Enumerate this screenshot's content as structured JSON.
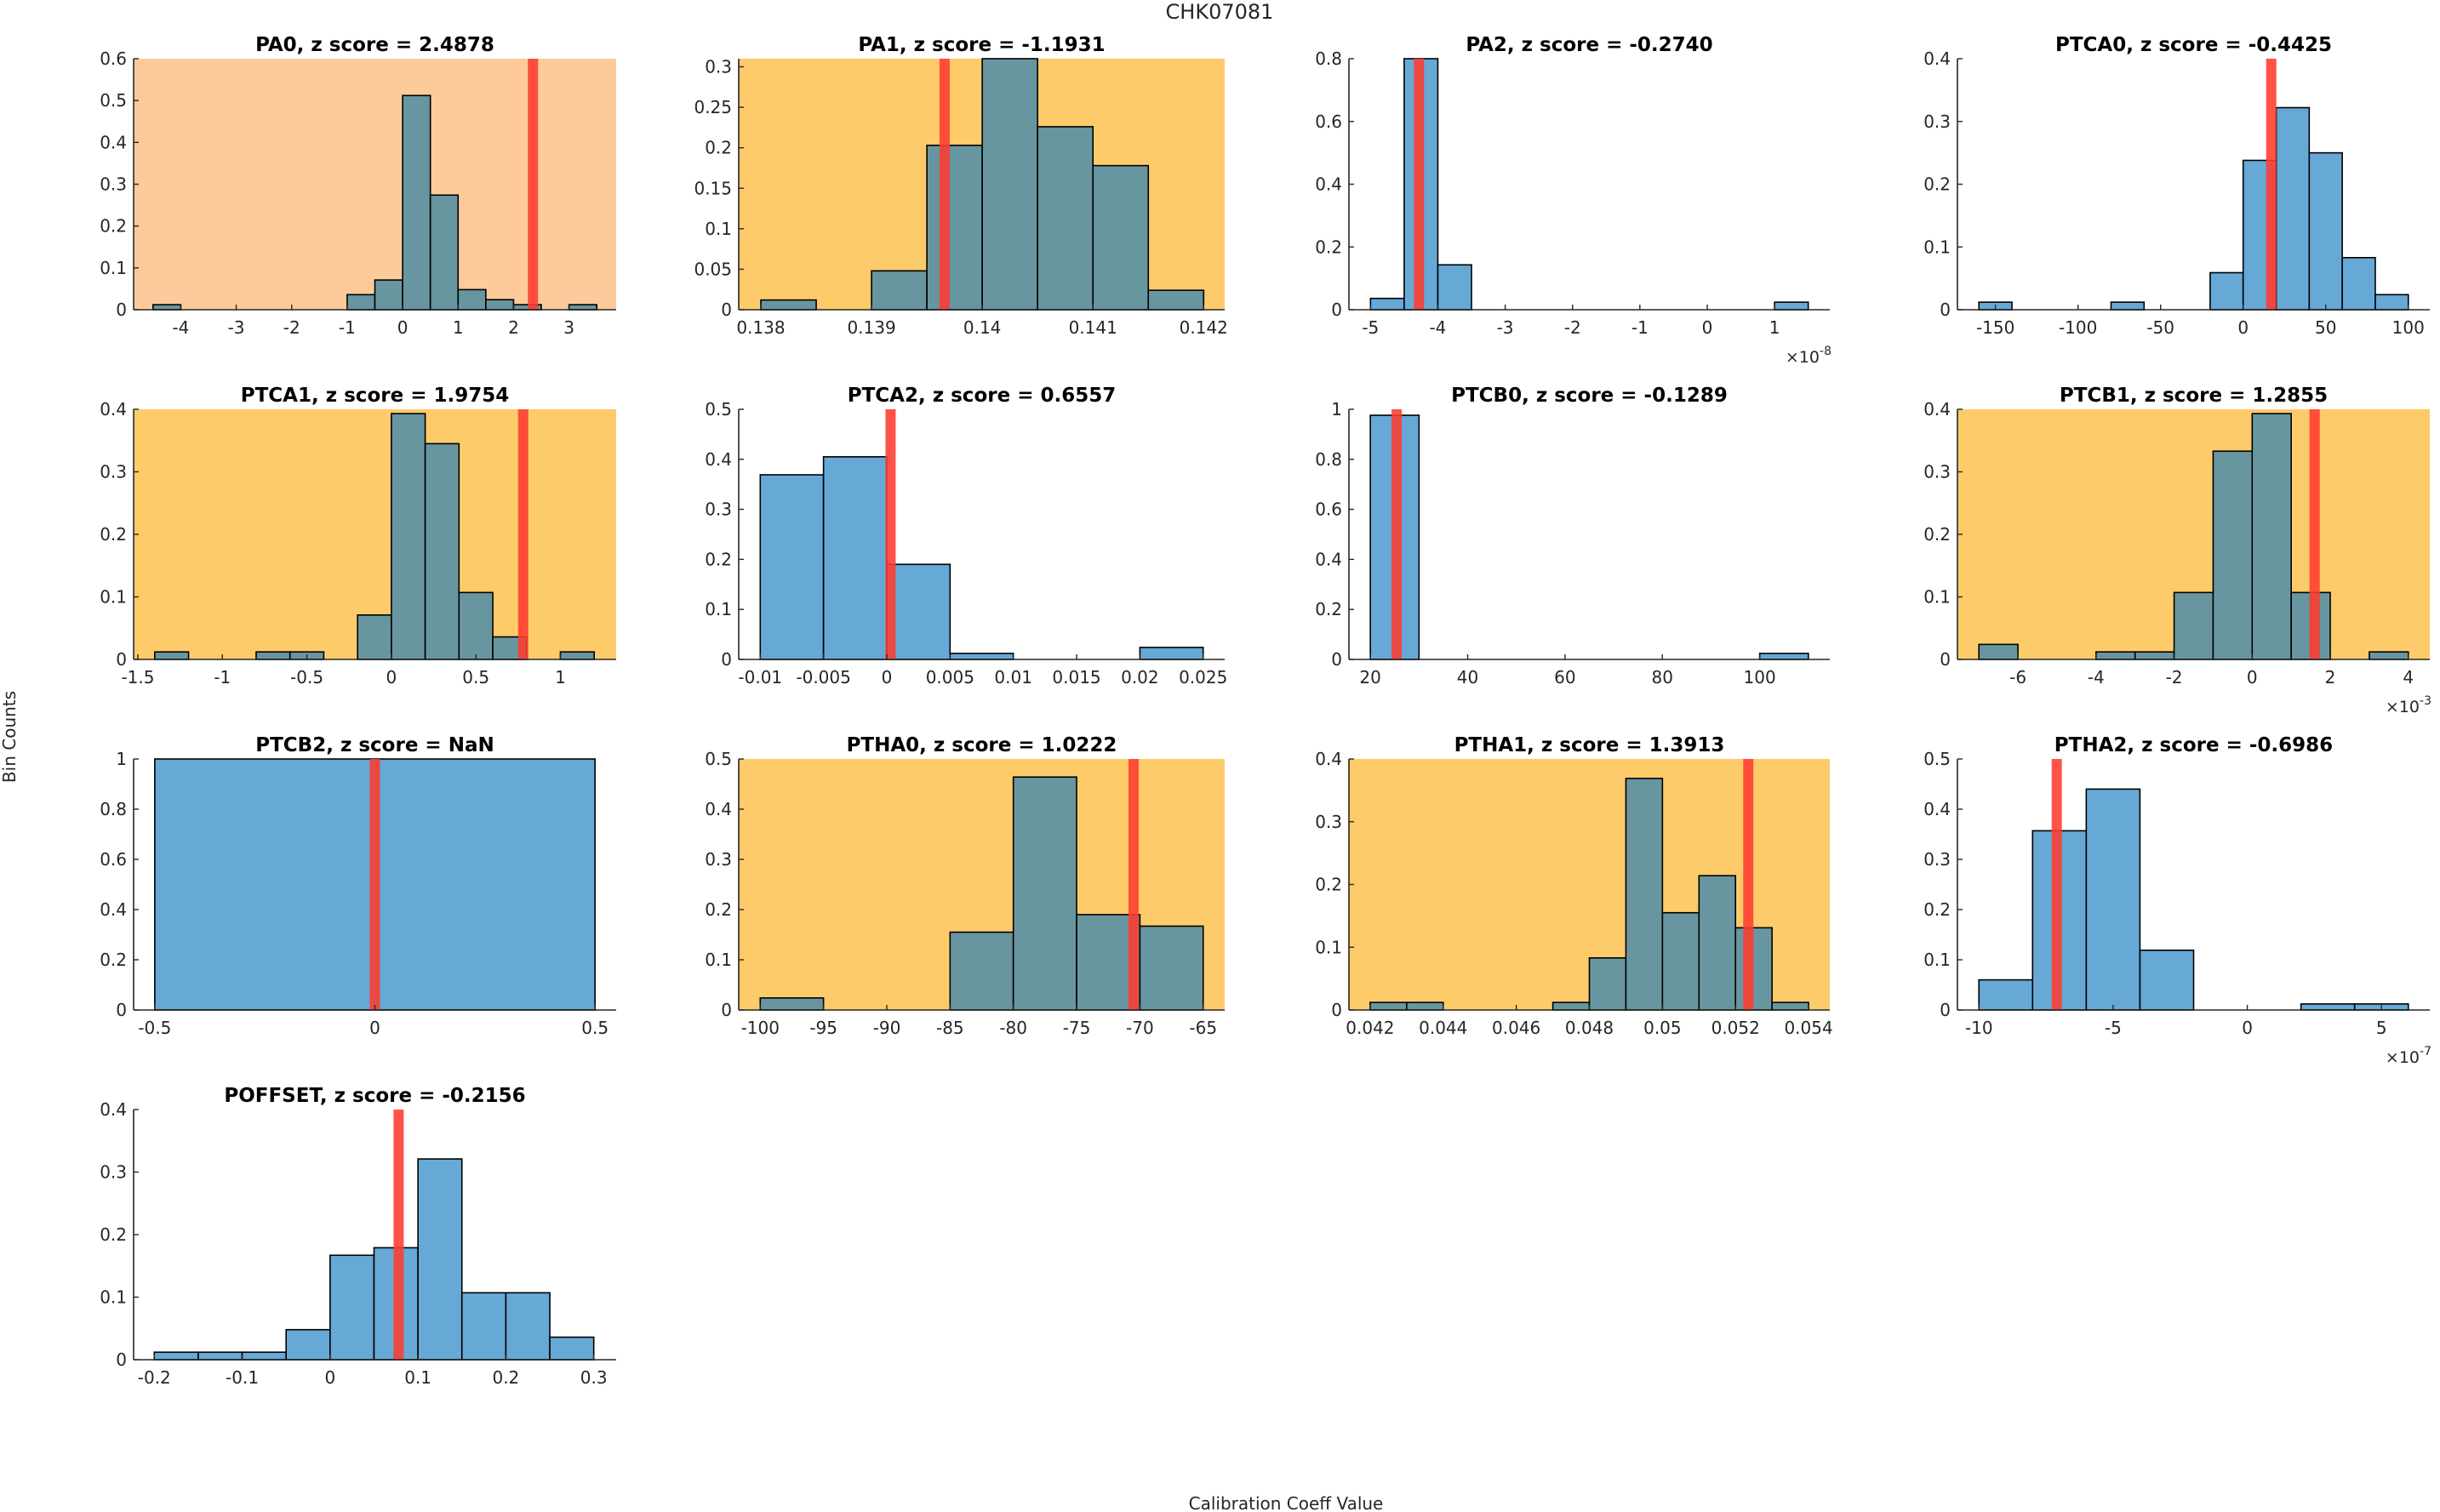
{
  "figure": {
    "suptitle": "CHK07081",
    "xlabel": "Calibration Coeff Value",
    "ylabel": "Bin Counts"
  },
  "colors": {
    "bar_default": "#66a9d6",
    "bar_highlight": "#6796a0",
    "bg_orange": "#fdcb9b",
    "bg_yellow": "#fdcb69",
    "marker_red": "#ff3b30",
    "bar_edge": "#000000"
  },
  "chart_data": [
    {
      "type": "bar",
      "title": "PA0, z score = 2.4878",
      "name": "PA0",
      "z_score": "2.4878",
      "background": "orange",
      "bar_style": "highlight",
      "bin_edges_start": -4.5,
      "bin_width": 0.5,
      "values": [
        0.012,
        0,
        0,
        0,
        0,
        0,
        0,
        0.036,
        0.071,
        0.512,
        0.274,
        0.048,
        0.024,
        0.012,
        0,
        0.012
      ],
      "marker": 2.35,
      "xlim": [
        -4.85,
        3.85
      ],
      "ylim": [
        0,
        0.6
      ],
      "xticks": [
        -4,
        -3,
        -2,
        -1,
        0,
        1,
        2,
        3
      ],
      "xtick_labels": [
        "-4",
        "-3",
        "-2",
        "-1",
        "0",
        "1",
        "2",
        "3"
      ],
      "yticks": [
        0,
        0.1,
        0.2,
        0.3,
        0.4,
        0.5,
        0.6
      ],
      "ytick_labels": [
        "0",
        "0.1",
        "0.2",
        "0.3",
        "0.4",
        "0.5",
        "0.6"
      ],
      "exponent": ""
    },
    {
      "type": "bar",
      "title": "PA1, z score = -1.1931",
      "name": "PA1",
      "z_score": "-1.1931",
      "background": "yellow",
      "bar_style": "highlight",
      "bin_edges_start": 0.138,
      "bin_width": 0.0005,
      "values": [
        0.012,
        0,
        0.048,
        0.203,
        0.31,
        0.226,
        0.178,
        0.024
      ],
      "marker": 0.13966,
      "xlim": [
        0.1378,
        0.14219
      ],
      "ylim": [
        0,
        0.31
      ],
      "xticks": [
        0.138,
        0.139,
        0.14,
        0.141,
        0.142
      ],
      "xtick_labels": [
        "0.138",
        "0.139",
        "0.14",
        "0.141",
        "0.142"
      ],
      "yticks": [
        0,
        0.05,
        0.1,
        0.15,
        0.2,
        0.25,
        0.3
      ],
      "ytick_labels": [
        "0",
        "0.05",
        "0.1",
        "0.15",
        "0.2",
        "0.25",
        "0.3"
      ],
      "exponent": ""
    },
    {
      "type": "bar",
      "title": "PA2, z score = -0.2740",
      "name": "PA2",
      "z_score": "-0.2740",
      "background": "none",
      "bar_style": "default",
      "bin_edges_start": -5.0,
      "bin_width": 0.5,
      "values": [
        0.036,
        0.8,
        0.143,
        0,
        0,
        0,
        0,
        0,
        0,
        0,
        0,
        0,
        0.024
      ],
      "marker": -4.28,
      "xlim": [
        -5.32,
        1.82
      ],
      "ylim": [
        0,
        0.8
      ],
      "xticks": [
        -5,
        -4,
        -3,
        -2,
        -1,
        0,
        1
      ],
      "xtick_labels": [
        "-5",
        "-4",
        "-3",
        "-2",
        "-1",
        "0",
        "1"
      ],
      "yticks": [
        0,
        0.2,
        0.4,
        0.6,
        0.8
      ],
      "ytick_labels": [
        "0",
        "0.2",
        "0.4",
        "0.6",
        "0.8"
      ],
      "exponent": "-8"
    },
    {
      "type": "bar",
      "title": "PTCA0, z score = -0.4425",
      "name": "PTCA0",
      "z_score": "-0.4425",
      "background": "none",
      "bar_style": "default",
      "bin_edges_start": -160,
      "bin_width": 20,
      "values": [
        0.012,
        0,
        0,
        0,
        0.012,
        0,
        0,
        0.059,
        0.238,
        0.322,
        0.25,
        0.083,
        0.024
      ],
      "marker": 17,
      "xlim": [
        -173,
        113
      ],
      "ylim": [
        0,
        0.4
      ],
      "xticks": [
        -150,
        -100,
        -50,
        0,
        50,
        100
      ],
      "xtick_labels": [
        "-150",
        "-100",
        "-50",
        "0",
        "50",
        "100"
      ],
      "yticks": [
        0,
        0.1,
        0.2,
        0.3,
        0.4
      ],
      "ytick_labels": [
        "0",
        "0.1",
        "0.2",
        "0.3",
        "0.4"
      ],
      "exponent": ""
    },
    {
      "type": "bar",
      "title": "PTCA1, z score = 1.9754",
      "name": "PTCA1",
      "z_score": "1.9754",
      "background": "yellow",
      "bar_style": "highlight",
      "bin_edges_start": -1.4,
      "bin_width": 0.2,
      "values": [
        0.012,
        0,
        0,
        0.012,
        0.012,
        0,
        0.071,
        0.393,
        0.345,
        0.107,
        0.036,
        0,
        0.012
      ],
      "marker": 0.78,
      "xlim": [
        -1.525,
        1.33
      ],
      "ylim": [
        0,
        0.4
      ],
      "xticks": [
        -1.5,
        -1,
        -0.5,
        0,
        0.5,
        1
      ],
      "xtick_labels": [
        "-1.5",
        "-1",
        "-0.5",
        "0",
        "0.5",
        "1"
      ],
      "yticks": [
        0,
        0.1,
        0.2,
        0.3,
        0.4
      ],
      "ytick_labels": [
        "0",
        "0.1",
        "0.2",
        "0.3",
        "0.4"
      ],
      "exponent": ""
    },
    {
      "type": "bar",
      "title": "PTCA2, z score = 0.6557",
      "name": "PTCA2",
      "z_score": "0.6557",
      "background": "none",
      "bar_style": "default",
      "bin_edges_start": -0.01,
      "bin_width": 0.005,
      "values": [
        0.369,
        0.405,
        0.19,
        0.012,
        0,
        0,
        0.024
      ],
      "marker": 0.0003,
      "xlim": [
        -0.0117,
        0.0267
      ],
      "ylim": [
        0,
        0.5
      ],
      "xticks": [
        -0.01,
        -0.005,
        0,
        0.005,
        0.01,
        0.015,
        0.02,
        0.025
      ],
      "xtick_labels": [
        "-0.01",
        "-0.005",
        "0",
        "0.005",
        "0.01",
        "0.015",
        "0.02",
        "0.025"
      ],
      "yticks": [
        0,
        0.1,
        0.2,
        0.3,
        0.4,
        0.5
      ],
      "ytick_labels": [
        "0",
        "0.1",
        "0.2",
        "0.3",
        "0.4",
        "0.5"
      ],
      "exponent": ""
    },
    {
      "type": "bar",
      "title": "PTCB0, z score = -0.1289",
      "name": "PTCB0",
      "z_score": "-0.1289",
      "background": "none",
      "bar_style": "default",
      "bin_edges_start": 20,
      "bin_width": 10,
      "values": [
        0.976,
        0,
        0,
        0,
        0,
        0,
        0,
        0,
        0.024
      ],
      "marker": 25.4,
      "xlim": [
        15.6,
        114.4
      ],
      "ylim": [
        0,
        1
      ],
      "xticks": [
        20,
        40,
        60,
        80,
        100
      ],
      "xtick_labels": [
        "20",
        "40",
        "60",
        "80",
        "100"
      ],
      "yticks": [
        0,
        0.2,
        0.4,
        0.6,
        0.8,
        1
      ],
      "ytick_labels": [
        "0",
        "0.2",
        "0.4",
        "0.6",
        "0.8",
        "1"
      ],
      "exponent": ""
    },
    {
      "type": "bar",
      "title": "PTCB1, z score = 1.2855",
      "name": "PTCB1",
      "z_score": "1.2855",
      "background": "yellow",
      "bar_style": "highlight",
      "bin_edges_start": -7.0,
      "bin_width": 1.0,
      "values": [
        0.024,
        0,
        0,
        0.012,
        0.012,
        0.107,
        0.333,
        0.393,
        0.107,
        0,
        0.012
      ],
      "marker": 1.6,
      "xlim": [
        -7.55,
        4.55
      ],
      "ylim": [
        0,
        0.4
      ],
      "xticks": [
        -6,
        -4,
        -2,
        0,
        2,
        4
      ],
      "xtick_labels": [
        "-6",
        "-4",
        "-2",
        "0",
        "2",
        "4"
      ],
      "yticks": [
        0,
        0.1,
        0.2,
        0.3,
        0.4
      ],
      "ytick_labels": [
        "0",
        "0.1",
        "0.2",
        "0.3",
        "0.4"
      ],
      "exponent": "-3"
    },
    {
      "type": "bar",
      "title": "PTCB2, z score = NaN",
      "name": "PTCB2",
      "z_score": "NaN",
      "background": "none",
      "bar_style": "default",
      "bin_edges_start": -0.5,
      "bin_width": 1.0,
      "values": [
        1.0
      ],
      "marker": 0,
      "xlim": [
        -0.548,
        0.548
      ],
      "ylim": [
        0,
        1
      ],
      "xticks": [
        -0.5,
        0,
        0.5
      ],
      "xtick_labels": [
        "-0.5",
        "0",
        "0.5"
      ],
      "yticks": [
        0,
        0.2,
        0.4,
        0.6,
        0.8,
        1
      ],
      "ytick_labels": [
        "0",
        "0.2",
        "0.4",
        "0.6",
        "0.8",
        "1"
      ],
      "exponent": ""
    },
    {
      "type": "bar",
      "title": "PTHA0, z score = 1.0222",
      "name": "PTHA0",
      "z_score": "1.0222",
      "background": "yellow",
      "bar_style": "highlight",
      "bin_edges_start": -100,
      "bin_width": 5,
      "values": [
        0.024,
        0,
        0,
        0.155,
        0.464,
        0.19,
        0.167
      ],
      "marker": -70.5,
      "xlim": [
        -101.7,
        -63.3
      ],
      "ylim": [
        0,
        0.5
      ],
      "xticks": [
        -100,
        -95,
        -90,
        -85,
        -80,
        -75,
        -70,
        -65
      ],
      "xtick_labels": [
        "-100",
        "-95",
        "-90",
        "-85",
        "-80",
        "-75",
        "-70",
        "-65"
      ],
      "yticks": [
        0,
        0.1,
        0.2,
        0.3,
        0.4,
        0.5
      ],
      "ytick_labels": [
        "0",
        "0.1",
        "0.2",
        "0.3",
        "0.4",
        "0.5"
      ],
      "exponent": ""
    },
    {
      "type": "bar",
      "title": "PTHA1, z score = 1.3913",
      "name": "PTHA1",
      "z_score": "1.3913",
      "background": "yellow",
      "bar_style": "highlight",
      "bin_edges_start": 0.042,
      "bin_width": 0.001,
      "values": [
        0.012,
        0.012,
        0,
        0,
        0,
        0.012,
        0.083,
        0.369,
        0.155,
        0.214,
        0.131,
        0.012
      ],
      "marker": 0.05235,
      "xlim": [
        0.04142,
        0.05458
      ],
      "ylim": [
        0,
        0.4
      ],
      "xticks": [
        0.042,
        0.044,
        0.046,
        0.048,
        0.05,
        0.052,
        0.054
      ],
      "xtick_labels": [
        "0.042",
        "0.044",
        "0.046",
        "0.048",
        "0.05",
        "0.052",
        "0.054"
      ],
      "yticks": [
        0,
        0.1,
        0.2,
        0.3,
        0.4
      ],
      "ytick_labels": [
        "0",
        "0.1",
        "0.2",
        "0.3",
        "0.4"
      ],
      "exponent": ""
    },
    {
      "type": "bar",
      "title": "PTHA2, z score = -0.6986",
      "name": "PTHA2",
      "z_score": "-0.6986",
      "background": "none",
      "bar_style": "default",
      "bin_edges_start": -10,
      "bin_width": 2,
      "values": [
        0.06,
        0.357,
        0.44,
        0.119,
        0,
        0,
        0.012,
        0.012
      ],
      "marker": -7.1,
      "xlim": [
        -10.8,
        6.8
      ],
      "ylim": [
        0,
        0.5
      ],
      "xticks": [
        -10,
        -5,
        0,
        5
      ],
      "xtick_labels": [
        "-10",
        "-5",
        "0",
        "5"
      ],
      "yticks": [
        0,
        0.1,
        0.2,
        0.3,
        0.4,
        0.5
      ],
      "ytick_labels": [
        "0",
        "0.1",
        "0.2",
        "0.3",
        "0.4",
        "0.5"
      ],
      "exponent": "-7"
    },
    {
      "type": "bar",
      "title": "POFFSET, z score = -0.2156",
      "name": "POFFSET",
      "z_score": "-0.2156",
      "background": "none",
      "bar_style": "default",
      "bin_edges_start": -0.2,
      "bin_width": 0.05,
      "values": [
        0.012,
        0.012,
        0.012,
        0.048,
        0.167,
        0.179,
        0.321,
        0.107,
        0.107,
        0.036
      ],
      "marker": 0.078,
      "xlim": [
        -0.2235,
        0.3255
      ],
      "ylim": [
        0,
        0.4
      ],
      "xticks": [
        -0.2,
        -0.1,
        0,
        0.1,
        0.2,
        0.3
      ],
      "xtick_labels": [
        "-0.2",
        "-0.1",
        "0",
        "0.1",
        "0.2",
        "0.3"
      ],
      "yticks": [
        0,
        0.1,
        0.2,
        0.3,
        0.4
      ],
      "ytick_labels": [
        "0",
        "0.1",
        "0.2",
        "0.3",
        "0.4"
      ],
      "exponent": ""
    }
  ]
}
